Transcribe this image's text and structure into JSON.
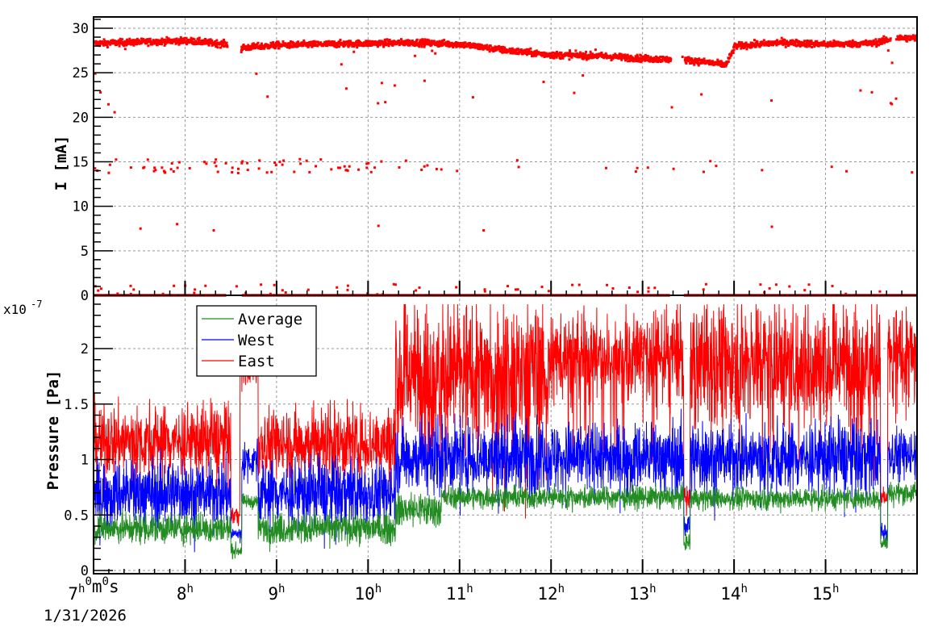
{
  "chart_data": [
    {
      "type": "scatter",
      "title": "",
      "xlabel": "",
      "ylabel": "I [mA]",
      "ylim": [
        0,
        31.3
      ],
      "yticks": [
        0,
        5,
        10,
        15,
        20,
        25,
        30
      ],
      "grid": true,
      "series": [
        {
          "name": "I",
          "color": "#ff0000",
          "description": "Beam current, main band ~28 mA drifting to ~26-27 mA around 12h-14h then ~28-29 mA; sparse outliers near 14-15 mA and 0-1 mA; baseline at 0 mA",
          "main_band": [
            {
              "t": 7.0,
              "v": 28.3
            },
            {
              "t": 8.0,
              "v": 28.6
            },
            {
              "t": 8.45,
              "v": 28.2
            },
            {
              "t": 8.6,
              "v": 27.8
            },
            {
              "t": 9.0,
              "v": 28.1
            },
            {
              "t": 10.0,
              "v": 28.3
            },
            {
              "t": 10.5,
              "v": 28.4
            },
            {
              "t": 11.0,
              "v": 28.2
            },
            {
              "t": 11.5,
              "v": 27.5
            },
            {
              "t": 12.0,
              "v": 27.0
            },
            {
              "t": 12.5,
              "v": 26.9
            },
            {
              "t": 13.0,
              "v": 26.6
            },
            {
              "t": 13.5,
              "v": 26.4
            },
            {
              "t": 13.9,
              "v": 25.9
            },
            {
              "t": 14.0,
              "v": 28.0
            },
            {
              "t": 14.5,
              "v": 28.4
            },
            {
              "t": 15.0,
              "v": 28.2
            },
            {
              "t": 15.5,
              "v": 28.3
            },
            {
              "t": 15.75,
              "v": 28.9
            },
            {
              "t": 16.0,
              "v": 28.9
            }
          ],
          "gaps": [
            [
              8.45,
              8.6
            ],
            [
              13.3,
              13.45
            ],
            [
              15.7,
              15.76
            ]
          ],
          "outlier_bands": [
            {
              "v": 14.5,
              "spread": 0.8,
              "count": 90
            },
            {
              "v": 0.7,
              "spread": 0.6,
              "count": 60
            }
          ]
        }
      ]
    },
    {
      "type": "line",
      "title": "",
      "xlabel": "",
      "ylabel": "Pressure [Pa]",
      "yscale_label": "x10^-7",
      "ylim": [
        0,
        2.46
      ],
      "yticks": [
        0,
        0.5,
        1,
        1.5,
        2
      ],
      "ytick_labels": [
        "0",
        "0.5",
        "1",
        "1.5",
        "2"
      ],
      "grid": true,
      "legend": {
        "entries": [
          "Average",
          "West",
          "East"
        ],
        "position": "upper-left"
      },
      "series": [
        {
          "name": "Average",
          "color": "#228b22",
          "segments": [
            {
              "t0": 7.0,
              "t1": 8.5,
              "mean": 0.38,
              "noise": 0.07
            },
            {
              "t0": 8.5,
              "t1": 8.62,
              "mean": 0.18,
              "noise": 0.03
            },
            {
              "t0": 8.62,
              "t1": 8.8,
              "mean": 0.62,
              "noise": 0.03
            },
            {
              "t0": 8.8,
              "t1": 10.3,
              "mean": 0.38,
              "noise": 0.07
            },
            {
              "t0": 10.3,
              "t1": 10.8,
              "mean": 0.55,
              "noise": 0.08
            },
            {
              "t0": 10.8,
              "t1": 13.45,
              "mean": 0.66,
              "noise": 0.05
            },
            {
              "t0": 13.45,
              "t1": 13.52,
              "mean": 0.25,
              "noise": 0.04
            },
            {
              "t0": 13.52,
              "t1": 15.6,
              "mean": 0.65,
              "noise": 0.05
            },
            {
              "t0": 15.6,
              "t1": 15.68,
              "mean": 0.25,
              "noise": 0.04
            },
            {
              "t0": 15.68,
              "t1": 16.0,
              "mean": 0.7,
              "noise": 0.05
            }
          ]
        },
        {
          "name": "West",
          "color": "#0000ff",
          "segments": [
            {
              "t0": 7.0,
              "t1": 8.5,
              "mean": 0.7,
              "noise": 0.15
            },
            {
              "t0": 8.5,
              "t1": 8.62,
              "mean": 0.33,
              "noise": 0.03
            },
            {
              "t0": 8.62,
              "t1": 8.8,
              "mean": 1.0,
              "noise": 0.08
            },
            {
              "t0": 8.8,
              "t1": 10.3,
              "mean": 0.7,
              "noise": 0.15
            },
            {
              "t0": 10.3,
              "t1": 13.45,
              "mean": 1.02,
              "noise": 0.16
            },
            {
              "t0": 13.45,
              "t1": 13.52,
              "mean": 0.4,
              "noise": 0.05
            },
            {
              "t0": 13.52,
              "t1": 15.6,
              "mean": 1.02,
              "noise": 0.16
            },
            {
              "t0": 15.6,
              "t1": 15.68,
              "mean": 0.35,
              "noise": 0.05
            },
            {
              "t0": 15.68,
              "t1": 16.0,
              "mean": 1.05,
              "noise": 0.12
            }
          ]
        },
        {
          "name": "East",
          "color": "#ff0000",
          "segments": [
            {
              "t0": 7.0,
              "t1": 8.5,
              "mean": 1.17,
              "noise": 0.16
            },
            {
              "t0": 8.5,
              "t1": 8.6,
              "mean": 0.5,
              "noise": 0.04
            },
            {
              "t0": 8.6,
              "t1": 8.8,
              "mean": 1.85,
              "noise": 0.1
            },
            {
              "t0": 8.8,
              "t1": 10.3,
              "mean": 1.15,
              "noise": 0.16
            },
            {
              "t0": 10.3,
              "t1": 12.0,
              "mean": 1.8,
              "noise": 0.3
            },
            {
              "t0": 12.0,
              "t1": 13.45,
              "mean": 1.95,
              "noise": 0.18
            },
            {
              "t0": 13.45,
              "t1": 13.52,
              "mean": 0.65,
              "noise": 0.05
            },
            {
              "t0": 13.52,
              "t1": 15.6,
              "mean": 1.9,
              "noise": 0.25
            },
            {
              "t0": 15.6,
              "t1": 15.68,
              "mean": 0.65,
              "noise": 0.05
            },
            {
              "t0": 15.68,
              "t1": 16.0,
              "mean": 1.95,
              "noise": 0.2
            }
          ]
        }
      ]
    }
  ],
  "x_axis": {
    "range_hours": [
      7.0,
      16.0
    ],
    "tick_labels": [
      {
        "t": 7,
        "main": "7",
        "parts": [
          [
            "h",
            ""
          ],
          [
            "0",
            "m"
          ],
          [
            "0",
            "s"
          ]
        ]
      },
      {
        "t": 8,
        "main": "8",
        "parts": [
          [
            "h",
            ""
          ]
        ]
      },
      {
        "t": 9,
        "main": "9",
        "parts": [
          [
            "h",
            ""
          ]
        ]
      },
      {
        "t": 10,
        "main": "10",
        "parts": [
          [
            "h",
            ""
          ]
        ]
      },
      {
        "t": 11,
        "main": "11",
        "parts": [
          [
            "h",
            ""
          ]
        ]
      },
      {
        "t": 12,
        "main": "12",
        "parts": [
          [
            "h",
            ""
          ]
        ]
      },
      {
        "t": 13,
        "main": "13",
        "parts": [
          [
            "h",
            ""
          ]
        ]
      },
      {
        "t": 14,
        "main": "14",
        "parts": [
          [
            "h",
            ""
          ]
        ]
      },
      {
        "t": 15,
        "main": "15",
        "parts": [
          [
            "h",
            ""
          ]
        ]
      }
    ],
    "date_label": "1/31/2026"
  },
  "labels": {
    "top_ylabel": "I [mA]",
    "bottom_ylabel": "Pressure [Pa]",
    "exponent_base": "x10",
    "exponent_power": "-7",
    "legend_average": "Average",
    "legend_west": "West",
    "legend_east": "East",
    "date": "1/31/2026"
  }
}
